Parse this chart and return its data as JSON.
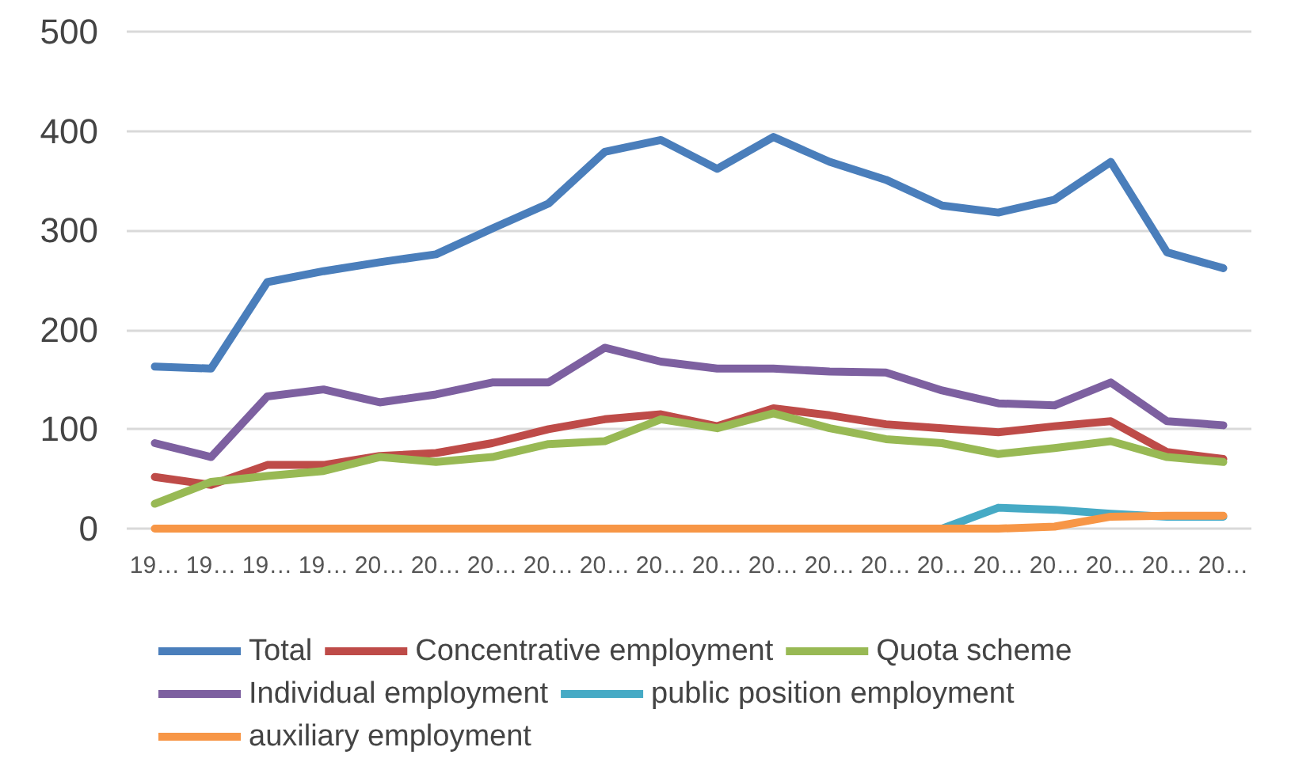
{
  "chart_data": {
    "type": "line",
    "categories": [
      "19…",
      "19…",
      "19…",
      "19…",
      "20…",
      "20…",
      "20…",
      "20…",
      "20…",
      "20…",
      "20…",
      "20…",
      "20…",
      "20…",
      "20…",
      "20…",
      "20…",
      "20…",
      "20…",
      "20…"
    ],
    "series": [
      {
        "name": "Total",
        "color": "#4a7ebb",
        "values": [
          163,
          161,
          248,
          259,
          268,
          276,
          302,
          327,
          379,
          391,
          362,
          394,
          369,
          351,
          325,
          318,
          331,
          369,
          278,
          262
        ]
      },
      {
        "name": "Concentrative employment",
        "color": "#be4b48",
        "values": [
          52,
          44,
          64,
          64,
          73,
          76,
          86,
          100,
          110,
          115,
          103,
          121,
          114,
          105,
          101,
          97,
          103,
          108,
          77,
          70
        ]
      },
      {
        "name": "Quota scheme",
        "color": "#98b954",
        "values": [
          25,
          47,
          53,
          58,
          72,
          67,
          72,
          85,
          88,
          110,
          101,
          116,
          101,
          90,
          86,
          75,
          81,
          88,
          72,
          67
        ]
      },
      {
        "name": "Individual employment",
        "color": "#7d60a0",
        "values": [
          86,
          72,
          133,
          140,
          127,
          135,
          147,
          147,
          182,
          168,
          161,
          161,
          158,
          157,
          139,
          126,
          124,
          147,
          108,
          104
        ]
      },
      {
        "name": "public position employment",
        "color": "#46aac5",
        "values": [
          null,
          null,
          null,
          null,
          null,
          null,
          null,
          null,
          null,
          null,
          null,
          null,
          null,
          null,
          0,
          21,
          19,
          15,
          12,
          12
        ]
      },
      {
        "name": "auxiliary employment",
        "color": "#f79646",
        "values": [
          0,
          0,
          0,
          0,
          0,
          0,
          0,
          0,
          0,
          0,
          0,
          0,
          0,
          0,
          0,
          0,
          2,
          12,
          13,
          13
        ]
      }
    ],
    "ylim": [
      0,
      500
    ],
    "yticks": [
      0,
      100,
      200,
      300,
      400,
      500
    ],
    "grid": "y",
    "legend": "bottom",
    "marker": "none",
    "line_style": "solid"
  }
}
